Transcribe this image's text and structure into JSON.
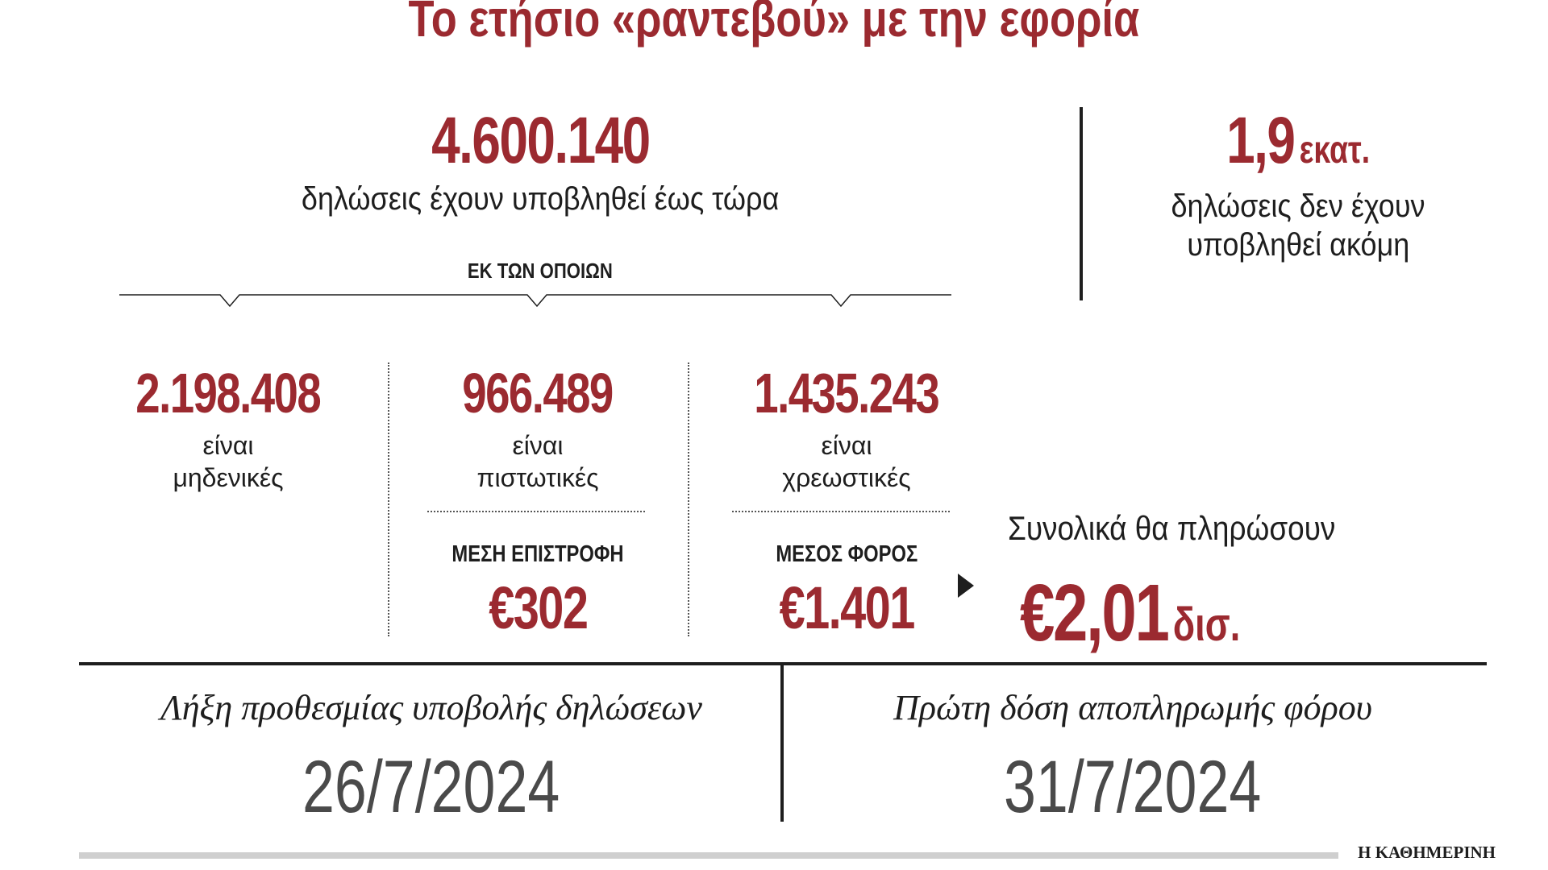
{
  "title": "Το ετήσιο «ραντεβού» με την εφορία",
  "filed": {
    "total": "4.600.140",
    "caption": "δηλώσεις έχουν υποβληθεί έως τώρα"
  },
  "pending": {
    "value": "1,9",
    "unit": "εκατ.",
    "caption_line1": "δηλώσεις δεν έχουν",
    "caption_line2": "υποβληθεί ακόμη"
  },
  "of_which": "ΕΚ ΤΩΝ ΟΠΟΙΩΝ",
  "breakdown": [
    {
      "value": "2.198.408",
      "line1": "είναι",
      "line2": "μηδενικές"
    },
    {
      "value": "966.489",
      "line1": "είναι",
      "line2": "πιστωτικές"
    },
    {
      "value": "1.435.243",
      "line1": "είναι",
      "line2": "χρεωστικές"
    }
  ],
  "average_refund": {
    "label": "ΜΕΣΗ ΕΠΙΣΤΡΟΦΗ",
    "value": "€302"
  },
  "average_tax": {
    "label": "ΜΕΣΟΣ ΦΟΡΟΣ",
    "value": "€1.401"
  },
  "total_pay": {
    "label": "Συνολικά θα πληρώσουν",
    "value": "€2,01",
    "unit": "δισ."
  },
  "deadline": {
    "label": "Λήξη προθεσμίας υποβολής δηλώσεων",
    "date": "26/7/2024"
  },
  "first_installment": {
    "label": "Πρώτη δόση αποπληρωμής φόρου",
    "date": "31/7/2024"
  },
  "publisher": "Η ΚΑΘΗΜΕΡΙΝΗ",
  "colors": {
    "accent": "#9b2a30",
    "text": "#1e1e1e",
    "date": "#4a4a4a"
  }
}
